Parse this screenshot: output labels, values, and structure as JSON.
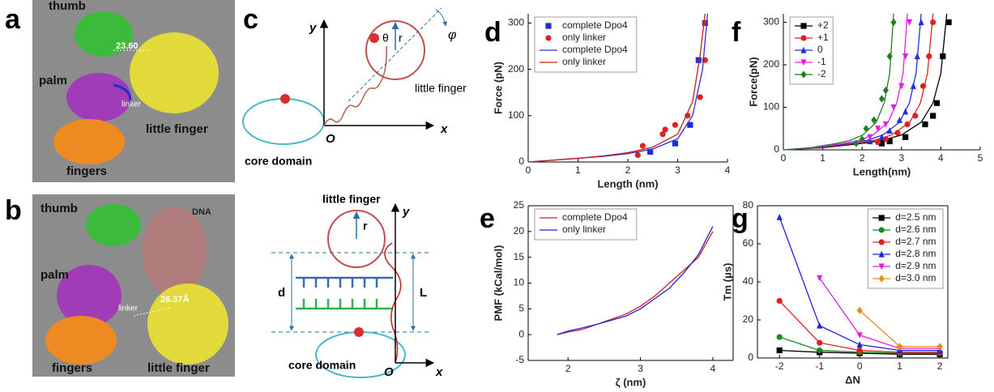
{
  "panel_labels": [
    "a",
    "b",
    "c",
    "d",
    "e",
    "f",
    "g"
  ],
  "structure_a": {
    "labels": [
      "thumb",
      "palm",
      "linker",
      "23.60",
      "little finger",
      "fingers"
    ]
  },
  "structure_b": {
    "labels": [
      "thumb",
      "DNA",
      "palm",
      "linker",
      "26.37Å",
      "fingers",
      "little finger"
    ]
  },
  "diagram_c_top": {
    "labels": [
      "y",
      "θ",
      "r",
      "φ",
      "little finger",
      "O",
      "x",
      "core domain"
    ]
  },
  "diagram_c_bottom": {
    "labels": [
      "little finger",
      "r",
      "y",
      "d",
      "L",
      "O",
      "x",
      "core domain"
    ]
  },
  "chart_data": [
    {
      "type": "scatter",
      "xlabel": "Length (nm)",
      "ylabel": "Force (pN)",
      "xlim": [
        0,
        4
      ],
      "ylim": [
        0,
        320
      ],
      "xticks": [
        0,
        1,
        2,
        3,
        4
      ],
      "yticks": [
        0,
        100,
        200,
        300
      ],
      "legend": "upper left",
      "frame": "axes",
      "series": [
        {
          "name": "complete Dpo4",
          "color": "#1f2fd6",
          "marker": "square",
          "x": [
            2.45,
            2.95,
            3.25,
            3.42,
            3.55
          ],
          "values": [
            22,
            40,
            80,
            220,
            300
          ]
        },
        {
          "name": "only linker",
          "color": "#e02020",
          "marker": "circle",
          "x": [
            2.2,
            2.3,
            2.7,
            2.75,
            2.95,
            3.2,
            3.45,
            3.55,
            3.55
          ],
          "values": [
            15,
            35,
            60,
            70,
            80,
            100,
            140,
            220,
            300
          ]
        },
        {
          "name": "complete Dpo4",
          "color": "#3030d0",
          "line": true,
          "x": [
            0,
            0.5,
            1,
            1.5,
            2,
            2.5,
            3,
            3.3,
            3.5,
            3.6
          ],
          "values": [
            0,
            4,
            8,
            12,
            18,
            28,
            50,
            100,
            200,
            320
          ]
        },
        {
          "name": "only linker",
          "color": "#c02020",
          "line": true,
          "x": [
            0,
            0.5,
            1,
            1.5,
            2,
            2.5,
            3,
            3.3,
            3.45,
            3.55
          ],
          "values": [
            0,
            4,
            8,
            13,
            20,
            32,
            60,
            130,
            230,
            320
          ]
        }
      ]
    },
    {
      "type": "line",
      "xlabel": "ζ (nm)",
      "ylabel": "PMF (kCal/mol)",
      "xlim": [
        1.45,
        4.28
      ],
      "ylim": [
        -5,
        25
      ],
      "xticks": [
        2,
        3,
        4
      ],
      "yticks": [
        -5,
        0,
        5,
        10,
        15,
        20,
        25
      ],
      "legend": "upper left",
      "frame": "box",
      "series": [
        {
          "name": "complete Dpo4",
          "color": "#d02020",
          "line": true,
          "x": [
            1.85,
            2,
            2.2,
            2.4,
            2.6,
            2.8,
            3,
            3.2,
            3.4,
            3.6,
            3.8,
            4
          ],
          "values": [
            0,
            0.5,
            1,
            2,
            3,
            4,
            5.5,
            7.5,
            10,
            12.5,
            15,
            20
          ]
        },
        {
          "name": "only linker",
          "color": "#2020d0",
          "line": true,
          "x": [
            1.85,
            2,
            2.2,
            2.4,
            2.6,
            2.8,
            3,
            3.2,
            3.4,
            3.6,
            3.8,
            4
          ],
          "values": [
            0,
            0.7,
            1.3,
            2,
            2.8,
            3.6,
            5,
            7,
            9,
            12,
            15.5,
            21
          ]
        }
      ]
    },
    {
      "type": "scatter",
      "xlabel": "Length(nm)",
      "ylabel": "Force(pN)",
      "xlim": [
        0,
        5
      ],
      "ylim": [
        0,
        320
      ],
      "xticks": [
        0,
        1,
        2,
        3,
        4,
        5
      ],
      "yticks": [
        0,
        100,
        200,
        300
      ],
      "legend": "upper left",
      "frame": "axes",
      "series": [
        {
          "name": "+2",
          "color": "#000000",
          "marker": "square",
          "x": [
            2.5,
            2.7,
            3.1,
            3.6,
            3.8,
            3.9,
            4.05,
            4.2
          ],
          "values": [
            15,
            20,
            30,
            60,
            80,
            110,
            220,
            300
          ],
          "fit_x": [
            0,
            1,
            2,
            2.5,
            3,
            3.5,
            3.8,
            4,
            4.15
          ],
          "fit_values": [
            0,
            5,
            15,
            22,
            35,
            65,
            110,
            180,
            320
          ]
        },
        {
          "name": "+1",
          "color": "#e02020",
          "marker": "circle",
          "x": [
            2.4,
            2.6,
            2.9,
            3.15,
            3.35,
            3.55,
            3.7,
            3.8
          ],
          "values": [
            18,
            25,
            40,
            60,
            80,
            150,
            220,
            300
          ],
          "fit_x": [
            0,
            0.92,
            1.83,
            2.29,
            2.75,
            3.21,
            3.48,
            3.66,
            3.8
          ],
          "fit_values": [
            0,
            5,
            15,
            22,
            35,
            65,
            110,
            180,
            320
          ]
        },
        {
          "name": "0",
          "color": "#1f2fe0",
          "marker": "triangle",
          "x": [
            2.2,
            2.5,
            2.7,
            2.95,
            3.1,
            3.3,
            3.4,
            3.5
          ],
          "values": [
            20,
            30,
            45,
            70,
            90,
            150,
            220,
            300
          ],
          "fit_x": [
            0,
            0.84,
            1.69,
            2.11,
            2.53,
            2.95,
            3.2,
            3.37,
            3.5
          ],
          "fit_values": [
            0,
            5,
            15,
            22,
            35,
            65,
            110,
            180,
            320
          ]
        },
        {
          "name": "-1",
          "color": "#e020e0",
          "marker": "triangle-down",
          "x": [
            2.0,
            2.2,
            2.4,
            2.6,
            2.8,
            3.0,
            3.1,
            3.2
          ],
          "values": [
            20,
            30,
            50,
            60,
            100,
            150,
            220,
            300
          ],
          "fit_x": [
            0,
            0.76,
            1.52,
            1.9,
            2.28,
            2.66,
            2.88,
            3.04,
            3.15
          ],
          "fit_values": [
            0,
            5,
            15,
            22,
            35,
            65,
            110,
            180,
            320
          ]
        },
        {
          "name": "-2",
          "color": "#208020",
          "marker": "diamond",
          "x": [
            1.85,
            2.0,
            2.1,
            2.3,
            2.5,
            2.6,
            2.7,
            2.8
          ],
          "values": [
            15,
            25,
            50,
            70,
            120,
            140,
            220,
            300
          ],
          "fit_x": [
            0,
            0.67,
            1.35,
            1.69,
            2.02,
            2.36,
            2.56,
            2.7,
            2.8
          ],
          "fit_values": [
            0,
            5,
            15,
            22,
            35,
            65,
            110,
            180,
            320
          ]
        }
      ]
    },
    {
      "type": "line",
      "xlabel": "ΔN",
      "ylabel": "Tm (μs)",
      "xlim": [
        -2.55,
        2.2
      ],
      "ylim": [
        0,
        80
      ],
      "xticks": [
        -2,
        -1,
        0,
        1,
        2
      ],
      "yticks": [
        0,
        20,
        40,
        60,
        80
      ],
      "legend": "upper right",
      "frame": "box",
      "series": [
        {
          "name": "d=2.5 nm",
          "color": "#000000",
          "marker": "square",
          "line": true,
          "x": [
            -2,
            -1,
            0,
            1,
            2
          ],
          "values": [
            4,
            3,
            2.5,
            2,
            2
          ]
        },
        {
          "name": "d=2.6 nm",
          "color": "#1a8a1a",
          "marker": "circle",
          "line": true,
          "x": [
            -2,
            -1,
            0,
            1,
            2
          ],
          "values": [
            11,
            4,
            3,
            2.5,
            2.5
          ]
        },
        {
          "name": "d=2.7 nm",
          "color": "#e02020",
          "marker": "circle",
          "line": true,
          "x": [
            -2,
            -1,
            0,
            1,
            2
          ],
          "values": [
            30,
            8,
            4,
            3,
            3
          ]
        },
        {
          "name": "d=2.8 nm",
          "color": "#2020e0",
          "marker": "triangle",
          "line": true,
          "x": [
            -2,
            -1,
            0,
            1,
            2
          ],
          "values": [
            74,
            17,
            7,
            4,
            4
          ]
        },
        {
          "name": "d=2.9 nm",
          "color": "#e020e0",
          "marker": "triangle-down",
          "line": true,
          "x": [
            -1,
            0,
            1,
            2
          ],
          "values": [
            42,
            12,
            5,
            5
          ]
        },
        {
          "name": "d=3.0 nm",
          "color": "#e0901a",
          "marker": "diamond",
          "line": true,
          "x": [
            0,
            1,
            2
          ],
          "values": [
            25,
            6,
            6
          ]
        }
      ]
    }
  ]
}
